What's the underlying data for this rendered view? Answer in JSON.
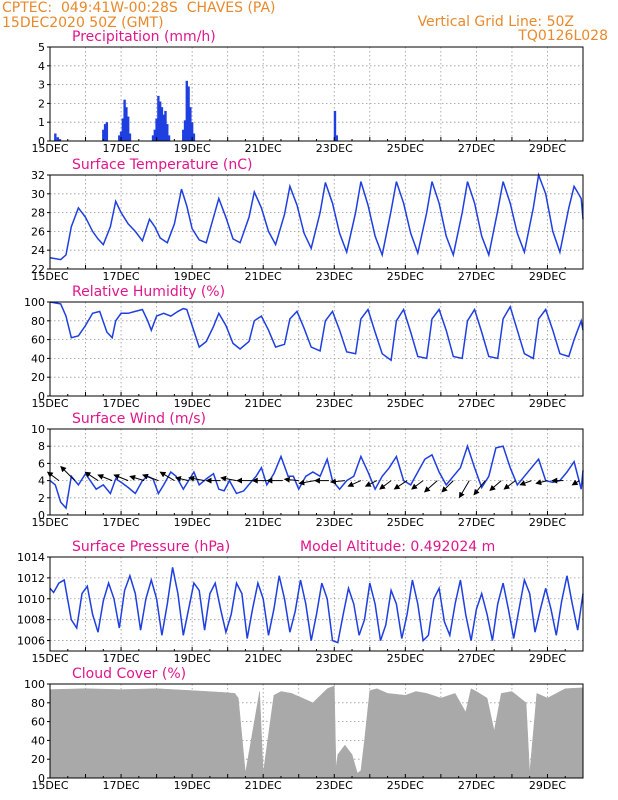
{
  "header": {
    "line1_left": "CPTEC:  049:41W-00:28S  CHAVES (PA)",
    "line2_left": "15DEC2020 50Z (GMT)",
    "line1_right": "Vertical Grid Line: 50Z",
    "line2_right": "TQ0126L028"
  },
  "colors": {
    "header": "#e8892b",
    "title": "#e0168c",
    "series": "#1f3fe0",
    "cloud": "#a9a9a9"
  },
  "x_axis": {
    "start_day": 15,
    "end_day": 30,
    "labels": [
      "15DEC",
      "17DEC",
      "19DEC",
      "21DEC",
      "23DEC",
      "25DEC",
      "27DEC",
      "29DEC"
    ]
  },
  "chart_data": [
    {
      "id": "precip",
      "type": "bar",
      "title": "Precipitation (mm/h)",
      "ylim": [
        0,
        5
      ],
      "yticks": [
        0,
        1,
        2,
        3,
        4,
        5
      ],
      "bars": [
        [
          15.15,
          0.4
        ],
        [
          15.22,
          0.2
        ],
        [
          15.28,
          0.1
        ],
        [
          16.5,
          0.6
        ],
        [
          16.55,
          0.9
        ],
        [
          16.6,
          1.0
        ],
        [
          16.95,
          0.3
        ],
        [
          17.0,
          0.5
        ],
        [
          17.05,
          1.2
        ],
        [
          17.1,
          2.2
        ],
        [
          17.15,
          1.8
        ],
        [
          17.2,
          1.3
        ],
        [
          17.25,
          0.4
        ],
        [
          17.9,
          0.3
        ],
        [
          17.95,
          0.6
        ],
        [
          18.0,
          1.2
        ],
        [
          18.05,
          2.4
        ],
        [
          18.1,
          2.1
        ],
        [
          18.15,
          1.8
        ],
        [
          18.2,
          1.4
        ],
        [
          18.25,
          1.6
        ],
        [
          18.3,
          0.9
        ],
        [
          18.35,
          0.3
        ],
        [
          18.75,
          0.6
        ],
        [
          18.8,
          1.1
        ],
        [
          18.85,
          3.2
        ],
        [
          18.9,
          2.9
        ],
        [
          18.95,
          1.8
        ],
        [
          19.0,
          1.0
        ],
        [
          19.05,
          0.4
        ],
        [
          23.02,
          1.6
        ],
        [
          23.07,
          0.3
        ]
      ]
    },
    {
      "id": "temp",
      "type": "line",
      "title": "Surface Temperature (nC)",
      "ylim": [
        22,
        32
      ],
      "yticks": [
        22,
        24,
        26,
        28,
        30,
        32
      ],
      "x": [
        15,
        15.3,
        15.45,
        15.6,
        15.8,
        16.0,
        16.2,
        16.35,
        16.5,
        16.7,
        16.85,
        17.0,
        17.2,
        17.4,
        17.6,
        17.8,
        17.95,
        18.1,
        18.3,
        18.5,
        18.7,
        18.85,
        19.0,
        19.2,
        19.4,
        19.6,
        19.75,
        19.95,
        20.15,
        20.35,
        20.6,
        20.75,
        20.95,
        21.15,
        21.35,
        21.6,
        21.75,
        21.95,
        22.15,
        22.35,
        22.6,
        22.75,
        22.95,
        23.15,
        23.35,
        23.6,
        23.75,
        23.95,
        24.15,
        24.35,
        24.6,
        24.75,
        24.95,
        25.15,
        25.35,
        25.6,
        25.75,
        25.95,
        26.15,
        26.35,
        26.6,
        26.75,
        26.95,
        27.15,
        27.35,
        27.6,
        27.75,
        27.95,
        28.15,
        28.35,
        28.6,
        28.75,
        28.95,
        29.15,
        29.35,
        29.6,
        29.75,
        29.95,
        30.0
      ],
      "y": [
        23.2,
        23.0,
        23.5,
        26.5,
        28.5,
        27.5,
        26.0,
        25.2,
        24.6,
        26.5,
        29.2,
        28.0,
        26.8,
        26.0,
        25.0,
        27.3,
        26.5,
        25.3,
        24.8,
        26.8,
        30.5,
        28.7,
        26.3,
        25.1,
        24.8,
        27.5,
        29.5,
        27.5,
        25.2,
        24.8,
        27.5,
        30.2,
        28.5,
        26.0,
        24.6,
        27.8,
        30.8,
        28.8,
        25.8,
        24.2,
        28.0,
        31.2,
        29.0,
        25.8,
        23.8,
        28.0,
        31.3,
        28.8,
        25.5,
        23.5,
        28.2,
        31.3,
        29.0,
        25.8,
        23.7,
        28.0,
        31.3,
        29.0,
        25.5,
        23.5,
        28.0,
        31.3,
        29.0,
        25.5,
        23.5,
        28.2,
        31.3,
        29.0,
        25.8,
        23.8,
        28.5,
        32.0,
        30.0,
        26.0,
        23.8,
        28.5,
        30.8,
        29.5,
        27.3
      ]
    },
    {
      "id": "rh",
      "type": "line",
      "title": "Relative Humidity (%)",
      "ylim": [
        0,
        100
      ],
      "yticks": [
        0,
        20,
        40,
        60,
        80,
        100
      ],
      "x": [
        15,
        15.3,
        15.45,
        15.6,
        15.8,
        16.0,
        16.2,
        16.4,
        16.6,
        16.75,
        16.85,
        17.0,
        17.2,
        17.4,
        17.6,
        17.75,
        17.85,
        18.0,
        18.2,
        18.4,
        18.6,
        18.75,
        18.85,
        19.0,
        19.2,
        19.4,
        19.6,
        19.75,
        19.95,
        20.15,
        20.35,
        20.6,
        20.75,
        20.95,
        21.15,
        21.35,
        21.6,
        21.75,
        21.95,
        22.15,
        22.35,
        22.6,
        22.75,
        22.95,
        23.15,
        23.35,
        23.6,
        23.75,
        23.95,
        24.15,
        24.35,
        24.6,
        24.75,
        24.95,
        25.15,
        25.35,
        25.6,
        25.75,
        25.95,
        26.15,
        26.35,
        26.6,
        26.75,
        26.95,
        27.15,
        27.35,
        27.6,
        27.75,
        27.95,
        28.15,
        28.35,
        28.6,
        28.75,
        28.95,
        29.15,
        29.35,
        29.6,
        29.75,
        29.95,
        30.0
      ],
      "y": [
        100,
        98,
        85,
        62,
        64,
        75,
        88,
        90,
        68,
        62,
        80,
        88,
        88,
        90,
        92,
        80,
        70,
        85,
        88,
        85,
        90,
        93,
        92,
        75,
        52,
        58,
        74,
        88,
        75,
        56,
        50,
        58,
        80,
        85,
        70,
        52,
        55,
        82,
        90,
        72,
        52,
        48,
        80,
        90,
        70,
        47,
        45,
        82,
        92,
        68,
        45,
        38,
        80,
        92,
        68,
        42,
        40,
        82,
        92,
        70,
        42,
        40,
        80,
        92,
        68,
        42,
        40,
        82,
        95,
        70,
        45,
        40,
        82,
        92,
        70,
        45,
        42,
        60,
        80,
        70
      ]
    },
    {
      "id": "wind",
      "type": "line",
      "title": "Surface Wind (m/s)",
      "ylim": [
        0,
        10
      ],
      "yticks": [
        0,
        2,
        4,
        6,
        8,
        10
      ],
      "x": [
        15,
        15.15,
        15.3,
        15.45,
        15.6,
        15.8,
        16.0,
        16.3,
        16.5,
        16.7,
        16.85,
        17.0,
        17.2,
        17.4,
        17.6,
        17.75,
        17.9,
        18.05,
        18.2,
        18.4,
        18.55,
        18.75,
        18.9,
        19.05,
        19.2,
        19.4,
        19.6,
        19.75,
        19.9,
        20.05,
        20.25,
        20.45,
        20.65,
        20.8,
        20.95,
        21.1,
        21.3,
        21.5,
        21.7,
        21.85,
        22.0,
        22.2,
        22.4,
        22.6,
        22.8,
        22.95,
        23.15,
        23.35,
        23.55,
        23.75,
        23.95,
        24.15,
        24.35,
        24.55,
        24.75,
        24.95,
        25.15,
        25.35,
        25.55,
        25.75,
        25.95,
        26.15,
        26.35,
        26.55,
        26.75,
        26.95,
        27.15,
        27.35,
        27.55,
        27.75,
        27.95,
        28.15,
        28.35,
        28.55,
        28.75,
        28.95,
        29.15,
        29.35,
        29.55,
        29.75,
        29.95,
        30.0
      ],
      "y": [
        4.0,
        3.5,
        1.5,
        0.8,
        4.5,
        3.5,
        4.8,
        3.0,
        3.5,
        2.5,
        4.2,
        3.8,
        3.2,
        2.5,
        4.0,
        4.5,
        4.2,
        2.5,
        3.5,
        5.0,
        4.5,
        3.0,
        4.0,
        5.0,
        3.5,
        4.2,
        4.8,
        3.0,
        2.8,
        4.0,
        2.5,
        2.8,
        3.8,
        4.5,
        5.5,
        3.5,
        4.8,
        6.8,
        4.5,
        4.5,
        3.0,
        4.5,
        5.0,
        4.5,
        6.5,
        4.0,
        3.0,
        4.0,
        4.5,
        6.8,
        5.0,
        3.0,
        4.5,
        5.5,
        6.8,
        4.0,
        3.5,
        5.0,
        6.5,
        7.0,
        5.0,
        3.5,
        4.5,
        5.5,
        8.0,
        5.5,
        3.2,
        4.5,
        7.8,
        8.0,
        5.5,
        3.5,
        4.5,
        5.5,
        6.5,
        4.0,
        3.8,
        4.0,
        5.0,
        6.2,
        3.0,
        5.2
      ]
    },
    {
      "id": "pres",
      "type": "line",
      "title": "Surface Pressure (hPa)",
      "subtitle": "Model Altitude: 0.492024 m",
      "ylim": [
        1005,
        1014
      ],
      "yticks": [
        1006,
        1008,
        1010,
        1012,
        1014
      ],
      "x": [
        15,
        15.1,
        15.25,
        15.4,
        15.6,
        15.75,
        15.9,
        16.05,
        16.2,
        16.35,
        16.5,
        16.65,
        16.8,
        16.95,
        17.1,
        17.25,
        17.4,
        17.55,
        17.7,
        17.85,
        18.0,
        18.15,
        18.3,
        18.45,
        18.6,
        18.75,
        18.9,
        19.05,
        19.2,
        19.35,
        19.5,
        19.65,
        19.8,
        19.95,
        20.1,
        20.25,
        20.4,
        20.55,
        20.7,
        20.85,
        21.0,
        21.15,
        21.3,
        21.45,
        21.6,
        21.75,
        21.9,
        22.05,
        22.2,
        22.35,
        22.5,
        22.65,
        22.8,
        22.95,
        23.1,
        23.25,
        23.4,
        23.55,
        23.7,
        23.85,
        24.0,
        24.15,
        24.3,
        24.45,
        24.6,
        24.75,
        24.9,
        25.05,
        25.2,
        25.35,
        25.5,
        25.65,
        25.8,
        25.95,
        26.1,
        26.25,
        26.4,
        26.55,
        26.7,
        26.85,
        27.0,
        27.15,
        27.3,
        27.45,
        27.6,
        27.75,
        27.9,
        28.05,
        28.2,
        28.35,
        28.5,
        28.65,
        28.8,
        28.95,
        29.1,
        29.25,
        29.4,
        29.55,
        29.7,
        29.85,
        30.0
      ],
      "y": [
        1011.0,
        1010.6,
        1011.5,
        1011.8,
        1008.0,
        1007.2,
        1010.5,
        1011.2,
        1008.5,
        1006.8,
        1009.8,
        1011.5,
        1010.0,
        1007.2,
        1010.8,
        1012.2,
        1010.5,
        1007.0,
        1010.0,
        1011.8,
        1010.0,
        1006.5,
        1009.5,
        1013.0,
        1010.5,
        1006.5,
        1009.0,
        1011.5,
        1010.8,
        1007.0,
        1010.5,
        1011.5,
        1009.0,
        1006.8,
        1008.5,
        1011.5,
        1010.5,
        1006.2,
        1009.0,
        1011.5,
        1010.0,
        1006.5,
        1009.0,
        1012.2,
        1010.0,
        1006.8,
        1008.8,
        1011.8,
        1009.5,
        1006.0,
        1008.5,
        1011.5,
        1010.0,
        1006.0,
        1005.8,
        1008.5,
        1011.0,
        1009.5,
        1006.5,
        1008.0,
        1011.5,
        1009.5,
        1006.0,
        1007.5,
        1010.8,
        1009.5,
        1006.2,
        1008.5,
        1011.8,
        1009.5,
        1006.0,
        1006.5,
        1010.0,
        1011.0,
        1007.8,
        1006.5,
        1009.5,
        1011.8,
        1008.5,
        1006.0,
        1009.0,
        1010.5,
        1008.5,
        1006.0,
        1009.5,
        1011.5,
        1009.0,
        1006.2,
        1009.0,
        1011.8,
        1010.5,
        1006.8,
        1009.0,
        1011.0,
        1009.0,
        1006.5,
        1009.8,
        1012.2,
        1009.5,
        1007.0,
        1010.5
      ]
    },
    {
      "id": "cloud",
      "type": "area",
      "title": "Cloud Cover (%)",
      "ylim": [
        0,
        100
      ],
      "yticks": [
        0,
        20,
        40,
        60,
        80,
        100
      ],
      "x": [
        15,
        16,
        17,
        18,
        19,
        19.9,
        20.2,
        20.3,
        20.5,
        20.9,
        21.0,
        21.3,
        21.5,
        21.8,
        22.1,
        22.4,
        22.8,
        23.0,
        23.05,
        23.1,
        23.3,
        23.5,
        23.65,
        23.75,
        23.85,
        24.0,
        24.2,
        24.5,
        25.0,
        25.3,
        25.6,
        26.0,
        26.4,
        26.7,
        26.85,
        27.0,
        27.3,
        27.5,
        27.7,
        28.0,
        28.4,
        28.5,
        28.7,
        29.0,
        29.5,
        30.0
      ],
      "y": [
        94,
        95,
        94,
        95,
        93,
        91,
        90,
        85,
        5,
        92,
        5,
        88,
        92,
        90,
        85,
        80,
        95,
        98,
        10,
        25,
        35,
        25,
        5,
        8,
        40,
        93,
        95,
        90,
        88,
        92,
        90,
        85,
        90,
        70,
        95,
        92,
        85,
        50,
        90,
        92,
        80,
        5,
        90,
        85,
        95,
        96
      ]
    }
  ],
  "wind_arrows": {
    "x": [
      15.25,
      15.7,
      16.35,
      16.75,
      17.2,
      17.65,
      18.05,
      18.5,
      18.9,
      19.35,
      19.8,
      20.25,
      20.7,
      21.1,
      21.55,
      22.0,
      22.45,
      22.85,
      23.3,
      23.75,
      24.2,
      24.6,
      25.05,
      25.5,
      25.9,
      26.35,
      26.8,
      27.25,
      27.7,
      28.1,
      28.55,
      29.0,
      29.45,
      29.9
    ],
    "dx": [
      -0.4,
      -0.5,
      -0.45,
      -0.5,
      -0.5,
      -0.5,
      -0.55,
      -0.5,
      -0.45,
      -0.55,
      -0.5,
      -0.55,
      -0.55,
      -0.5,
      -0.55,
      -0.5,
      -0.55,
      -0.5,
      -0.5,
      -0.45,
      -0.4,
      -0.4,
      -0.45,
      -0.4,
      -0.45,
      -0.4,
      -0.35,
      -0.4,
      -0.4,
      -0.4,
      -0.4,
      -0.4,
      -0.4,
      -0.25
    ],
    "dy": [
      0.3,
      0.5,
      0.3,
      0.2,
      0.2,
      0.15,
      0.2,
      0.3,
      0.1,
      0.1,
      0.0,
      0.1,
      0.0,
      0.0,
      0.0,
      0.05,
      -0.1,
      0.0,
      -0.05,
      -0.2,
      -0.2,
      -0.3,
      -0.3,
      -0.3,
      -0.4,
      -0.4,
      -0.6,
      -0.5,
      -0.35,
      -0.3,
      -0.15,
      -0.1,
      0.0,
      -0.15
    ]
  }
}
